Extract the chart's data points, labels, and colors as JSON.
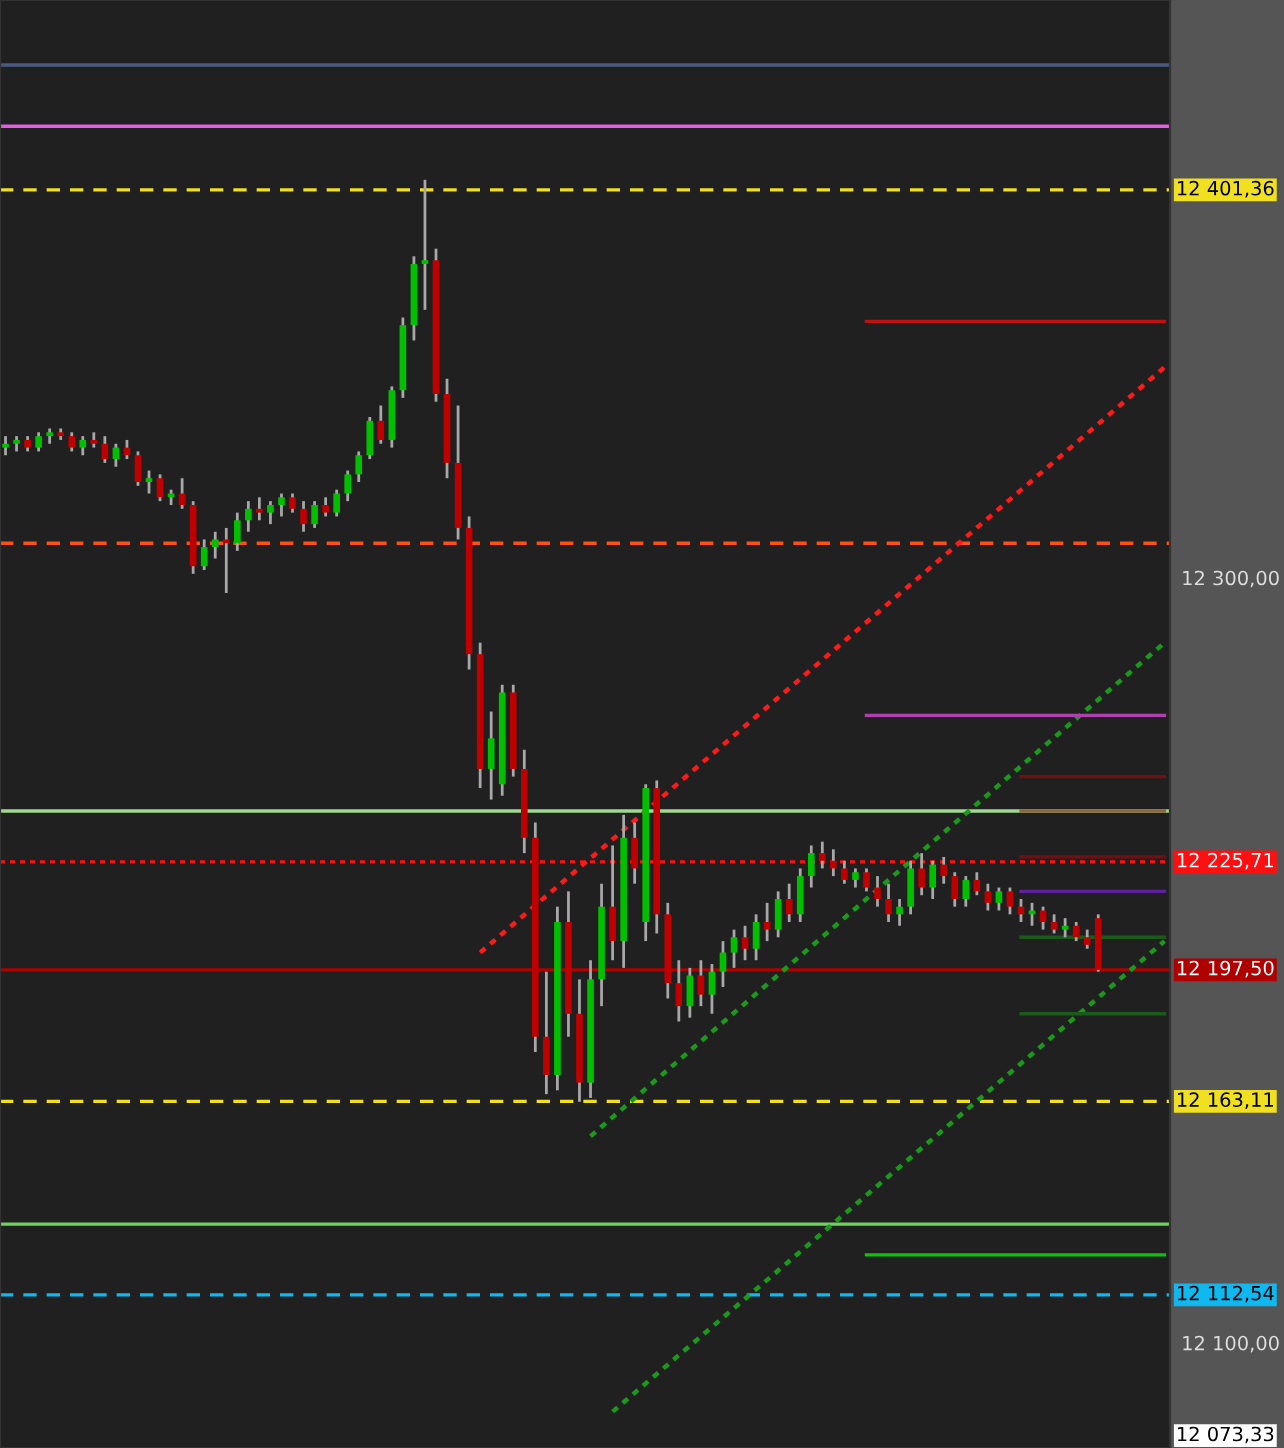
{
  "chart_data": {
    "type": "candlestick",
    "categories": [
      null,
      null,
      null,
      null,
      null,
      null,
      null,
      null,
      null,
      null,
      null,
      null,
      null,
      null,
      null,
      null,
      null,
      null,
      null,
      null,
      null,
      null,
      null,
      null,
      null,
      null,
      null,
      null,
      null,
      null,
      null,
      null,
      null,
      null,
      null,
      null,
      null,
      null,
      null,
      null,
      null,
      null,
      null,
      null,
      null,
      null,
      null,
      null,
      null,
      null,
      null,
      null,
      null,
      null,
      null,
      null,
      null,
      null,
      null,
      null,
      null,
      null,
      null,
      null,
      null,
      null,
      null,
      null,
      null,
      null,
      null,
      null,
      null,
      null,
      null,
      null,
      null,
      null,
      null,
      null,
      null,
      null,
      null,
      null,
      null,
      null,
      null,
      null,
      null,
      null,
      null,
      null,
      null,
      null,
      null,
      null,
      null,
      null,
      null,
      null,
      null,
      null,
      null,
      null,
      null,
      null
    ],
    "ohlc": [
      [
        12334,
        12337,
        12332,
        12335
      ],
      [
        12335,
        12337,
        12333,
        12336
      ],
      [
        12336,
        12337,
        12333,
        12334
      ],
      [
        12334,
        12338,
        12333,
        12337
      ],
      [
        12337,
        12339,
        12335,
        12338
      ],
      [
        12338,
        12339,
        12336,
        12337
      ],
      [
        12337,
        12338,
        12333,
        12334
      ],
      [
        12334,
        12337,
        12332,
        12336
      ],
      [
        12336,
        12338,
        12334,
        12335
      ],
      [
        12335,
        12337,
        12330,
        12331
      ],
      [
        12331,
        12335,
        12329,
        12334
      ],
      [
        12334,
        12336,
        12331,
        12332
      ],
      [
        12332,
        12333,
        12324,
        12325
      ],
      [
        12325,
        12328,
        12322,
        12326
      ],
      [
        12326,
        12327,
        12320,
        12321
      ],
      [
        12321,
        12323,
        12319,
        12322
      ],
      [
        12322,
        12326,
        12318,
        12319
      ],
      [
        12319,
        12320,
        12301,
        12303
      ],
      [
        12303,
        12310,
        12302,
        12308
      ],
      [
        12308,
        12312,
        12305,
        12310
      ],
      [
        12310,
        12313,
        12296,
        12309
      ],
      [
        12309,
        12317,
        12307,
        12315
      ],
      [
        12315,
        12320,
        12312,
        12318
      ],
      [
        12318,
        12321,
        12315,
        12317
      ],
      [
        12317,
        12320,
        12314,
        12319
      ],
      [
        12319,
        12322,
        12316,
        12321
      ],
      [
        12321,
        12322,
        12317,
        12318
      ],
      [
        12318,
        12320,
        12312,
        12314
      ],
      [
        12314,
        12320,
        12313,
        12319
      ],
      [
        12319,
        12321,
        12316,
        12317
      ],
      [
        12317,
        12323,
        12316,
        12322
      ],
      [
        12322,
        12328,
        12320,
        12327
      ],
      [
        12327,
        12333,
        12325,
        12332
      ],
      [
        12332,
        12342,
        12331,
        12341
      ],
      [
        12341,
        12345,
        12335,
        12336
      ],
      [
        12336,
        12350,
        12334,
        12349
      ],
      [
        12349,
        12368,
        12347,
        12366
      ],
      [
        12366,
        12384,
        12362,
        12382
      ],
      [
        12382,
        12404,
        12370,
        12383
      ],
      [
        12383,
        12386,
        12346,
        12348
      ],
      [
        12348,
        12352,
        12326,
        12330
      ],
      [
        12330,
        12345,
        12310,
        12313
      ],
      [
        12313,
        12316,
        12276,
        12280
      ],
      [
        12280,
        12283,
        12245,
        12250
      ],
      [
        12250,
        12265,
        12242,
        12258
      ],
      [
        12246,
        12272,
        12243,
        12270
      ],
      [
        12270,
        12272,
        12248,
        12250
      ],
      [
        12250,
        12255,
        12228,
        12232
      ],
      [
        12232,
        12236,
        12176,
        12180
      ],
      [
        12180,
        12197,
        12165,
        12170
      ],
      [
        12170,
        12214,
        12166,
        12210
      ],
      [
        12210,
        12218,
        12180,
        12186
      ],
      [
        12186,
        12195,
        12163,
        12168
      ],
      [
        12168,
        12200,
        12164,
        12195
      ],
      [
        12195,
        12220,
        12188,
        12214
      ],
      [
        12214,
        12230,
        12200,
        12205
      ],
      [
        12205,
        12238,
        12198,
        12232
      ],
      [
        12232,
        12236,
        12220,
        12224
      ],
      [
        12210,
        12246,
        12205,
        12245
      ],
      [
        12245,
        12247,
        12207,
        12212
      ],
      [
        12212,
        12215,
        12190,
        12194
      ],
      [
        12194,
        12200,
        12184,
        12188
      ],
      [
        12188,
        12198,
        12185,
        12196
      ],
      [
        12196,
        12200,
        12188,
        12191
      ],
      [
        12191,
        12199,
        12186,
        12197
      ],
      [
        12197,
        12205,
        12193,
        12202
      ],
      [
        12202,
        12208,
        12198,
        12206
      ],
      [
        12206,
        12209,
        12200,
        12203
      ],
      [
        12203,
        12212,
        12200,
        12210
      ],
      [
        12210,
        12215,
        12205,
        12208
      ],
      [
        12208,
        12218,
        12206,
        12216
      ],
      [
        12216,
        12220,
        12210,
        12212
      ],
      [
        12212,
        12224,
        12210,
        12222
      ],
      [
        12222,
        12230,
        12219,
        12228
      ],
      [
        12228,
        12231,
        12224,
        12226
      ],
      [
        12226,
        12229,
        12222,
        12224
      ],
      [
        12224,
        12226,
        12220,
        12221
      ],
      [
        12221,
        12224,
        12219,
        12223
      ],
      [
        12223,
        12224,
        12218,
        12219
      ],
      [
        12219,
        12222,
        12214,
        12216
      ],
      [
        12216,
        12220,
        12210,
        12212
      ],
      [
        12212,
        12216,
        12209,
        12214
      ],
      [
        12214,
        12226,
        12212,
        12224
      ],
      [
        12224,
        12228,
        12217,
        12219
      ],
      [
        12219,
        12226,
        12216,
        12225
      ],
      [
        12225,
        12227,
        12220,
        12222
      ],
      [
        12222,
        12223,
        12214,
        12216
      ],
      [
        12216,
        12222,
        12214,
        12221
      ],
      [
        12221,
        12223,
        12217,
        12218
      ],
      [
        12218,
        12220,
        12213,
        12215
      ],
      [
        12215,
        12219,
        12213,
        12218
      ],
      [
        12218,
        12219,
        12212,
        12214
      ],
      [
        12214,
        12216,
        12210,
        12212
      ],
      [
        12212,
        12215,
        12209,
        12213
      ],
      [
        12213,
        12214,
        12208,
        12210
      ],
      [
        12210,
        12212,
        12207,
        12208
      ],
      [
        12208,
        12211,
        12206,
        12209
      ],
      [
        12209,
        12210,
        12205,
        12206
      ],
      [
        12206,
        12208,
        12203,
        12204
      ],
      [
        12211,
        12212,
        12197,
        12197.5
      ],
      null,
      null,
      null,
      null,
      null,
      null
    ],
    "series": [
      {
        "type": "line",
        "color": "#ff1a1a",
        "line_style": "dotted",
        "values": [
          null,
          null,
          null,
          null,
          null,
          null,
          null,
          null,
          null,
          null,
          null,
          null,
          null,
          null,
          null,
          null,
          null,
          null,
          null,
          null,
          null,
          null,
          null,
          null,
          null,
          null,
          null,
          null,
          null,
          null,
          null,
          null,
          null,
          null,
          null,
          null,
          null,
          null,
          null,
          null,
          null,
          null,
          null,
          12202,
          null,
          null,
          null,
          null,
          null,
          null,
          null,
          null,
          null,
          null,
          null,
          null,
          null,
          null,
          null,
          null,
          null,
          null,
          null,
          null,
          null,
          null,
          null,
          null,
          null,
          null,
          null,
          null,
          null,
          null,
          null,
          null,
          null,
          null,
          null,
          null,
          null,
          null,
          null,
          null,
          null,
          null,
          null,
          null,
          null,
          null,
          null,
          null,
          null,
          null,
          null,
          null,
          null,
          null,
          null,
          null,
          null,
          null,
          null,
          null,
          null,
          12355
        ]
      },
      {
        "type": "line",
        "color": "#1a9a1a",
        "line_style": "dotted",
        "values": [
          null,
          null,
          null,
          null,
          null,
          null,
          null,
          null,
          null,
          null,
          null,
          null,
          null,
          null,
          null,
          null,
          null,
          null,
          null,
          null,
          null,
          null,
          null,
          null,
          null,
          null,
          null,
          null,
          null,
          null,
          null,
          null,
          null,
          null,
          null,
          null,
          null,
          null,
          null,
          null,
          null,
          null,
          null,
          null,
          null,
          null,
          null,
          null,
          null,
          null,
          null,
          null,
          null,
          12154,
          null,
          null,
          null,
          null,
          null,
          null,
          null,
          null,
          null,
          null,
          null,
          null,
          null,
          null,
          null,
          null,
          null,
          null,
          null,
          null,
          null,
          null,
          null,
          null,
          null,
          null,
          null,
          null,
          null,
          null,
          null,
          null,
          null,
          null,
          null,
          null,
          null,
          null,
          null,
          null,
          null,
          null,
          null,
          null,
          null,
          null,
          null,
          null,
          null,
          null,
          null,
          12283
        ]
      },
      {
        "type": "line",
        "color": "#1a9a1a",
        "line_style": "dotted",
        "values": [
          null,
          null,
          null,
          null,
          null,
          null,
          null,
          null,
          null,
          null,
          null,
          null,
          null,
          null,
          null,
          null,
          null,
          null,
          null,
          null,
          null,
          null,
          null,
          null,
          null,
          null,
          null,
          null,
          null,
          null,
          null,
          null,
          null,
          null,
          null,
          null,
          null,
          null,
          null,
          null,
          null,
          null,
          null,
          null,
          null,
          null,
          null,
          null,
          null,
          null,
          null,
          null,
          null,
          null,
          null,
          12082,
          null,
          null,
          null,
          null,
          null,
          null,
          null,
          null,
          null,
          null,
          null,
          null,
          null,
          null,
          null,
          null,
          null,
          null,
          null,
          null,
          null,
          null,
          null,
          null,
          null,
          null,
          null,
          null,
          null,
          null,
          null,
          null,
          null,
          null,
          null,
          null,
          null,
          null,
          null,
          null,
          null,
          null,
          null,
          null,
          null,
          null,
          null,
          null,
          null,
          12205
        ]
      },
      {
        "type": "line",
        "color": "#c01010",
        "line_style": "solid",
        "values": [
          null,
          null,
          null,
          null,
          null,
          null,
          null,
          null,
          null,
          null,
          null,
          null,
          null,
          null,
          null,
          null,
          null,
          null,
          null,
          null,
          null,
          null,
          null,
          null,
          null,
          null,
          null,
          null,
          null,
          null,
          null,
          null,
          null,
          null,
          null,
          null,
          null,
          null,
          null,
          null,
          null,
          null,
          null,
          null,
          null,
          null,
          null,
          null,
          null,
          null,
          null,
          null,
          null,
          null,
          null,
          null,
          null,
          null,
          null,
          null,
          null,
          null,
          null,
          null,
          null,
          null,
          null,
          null,
          null,
          null,
          null,
          null,
          null,
          null,
          null,
          null,
          null,
          null,
          12367,
          null,
          null,
          null,
          null,
          null,
          null,
          null,
          null,
          null,
          null,
          null,
          null,
          null,
          null,
          null,
          null,
          null,
          null,
          null,
          null,
          null,
          null,
          null,
          null,
          null,
          null,
          12367
        ]
      },
      {
        "type": "line",
        "color": "#b040b0",
        "line_style": "solid",
        "values": [
          null,
          null,
          null,
          null,
          null,
          null,
          null,
          null,
          null,
          null,
          null,
          null,
          null,
          null,
          null,
          null,
          null,
          null,
          null,
          null,
          null,
          null,
          null,
          null,
          null,
          null,
          null,
          null,
          null,
          null,
          null,
          null,
          null,
          null,
          null,
          null,
          null,
          null,
          null,
          null,
          null,
          null,
          null,
          null,
          null,
          null,
          null,
          null,
          null,
          null,
          null,
          null,
          null,
          null,
          null,
          null,
          null,
          null,
          null,
          null,
          null,
          null,
          null,
          null,
          null,
          null,
          null,
          null,
          null,
          null,
          null,
          null,
          null,
          null,
          null,
          null,
          null,
          null,
          12264,
          null,
          null,
          null,
          null,
          null,
          null,
          null,
          null,
          null,
          null,
          null,
          null,
          null,
          null,
          null,
          null,
          null,
          null,
          null,
          null,
          null,
          null,
          null,
          null,
          null,
          null,
          12264
        ]
      },
      {
        "type": "line",
        "color": "#10c010",
        "line_style": "solid",
        "values": [
          null,
          null,
          null,
          null,
          null,
          null,
          null,
          null,
          null,
          null,
          null,
          null,
          null,
          null,
          null,
          null,
          null,
          null,
          null,
          null,
          null,
          null,
          null,
          null,
          null,
          null,
          null,
          null,
          null,
          null,
          null,
          null,
          null,
          null,
          null,
          null,
          null,
          null,
          null,
          null,
          null,
          null,
          null,
          null,
          null,
          null,
          null,
          null,
          null,
          null,
          null,
          null,
          null,
          null,
          null,
          null,
          null,
          null,
          null,
          null,
          null,
          null,
          null,
          null,
          null,
          null,
          null,
          null,
          null,
          null,
          null,
          null,
          null,
          null,
          null,
          null,
          null,
          null,
          12123,
          null,
          null,
          null,
          null,
          null,
          null,
          null,
          null,
          null,
          null,
          null,
          null,
          null,
          null,
          null,
          null,
          null,
          null,
          null,
          null,
          null,
          null,
          null,
          null,
          null,
          null,
          12123
        ]
      },
      {
        "type": "line",
        "color": "#701010",
        "line_style": "solid",
        "values": [
          null,
          null,
          null,
          null,
          null,
          null,
          null,
          null,
          null,
          null,
          null,
          null,
          null,
          null,
          null,
          null,
          null,
          null,
          null,
          null,
          null,
          null,
          null,
          null,
          null,
          null,
          null,
          null,
          null,
          null,
          null,
          null,
          null,
          null,
          null,
          null,
          null,
          null,
          null,
          null,
          null,
          null,
          null,
          null,
          null,
          null,
          null,
          null,
          null,
          null,
          null,
          null,
          null,
          null,
          null,
          null,
          null,
          null,
          null,
          null,
          null,
          null,
          null,
          null,
          null,
          null,
          null,
          null,
          null,
          null,
          null,
          null,
          null,
          null,
          null,
          null,
          null,
          null,
          null,
          null,
          null,
          null,
          null,
          null,
          null,
          null,
          null,
          null,
          null,
          null,
          null,
          null,
          12248,
          null,
          null,
          null,
          null,
          null,
          null,
          null,
          null,
          null,
          null,
          null,
          null,
          12248
        ]
      },
      {
        "type": "line",
        "color": "#8a6a40",
        "line_style": "solid",
        "values": [
          null,
          null,
          null,
          null,
          null,
          null,
          null,
          null,
          null,
          null,
          null,
          null,
          null,
          null,
          null,
          null,
          null,
          null,
          null,
          null,
          null,
          null,
          null,
          null,
          null,
          null,
          null,
          null,
          null,
          null,
          null,
          null,
          null,
          null,
          null,
          null,
          null,
          null,
          null,
          null,
          null,
          null,
          null,
          null,
          null,
          null,
          null,
          null,
          null,
          null,
          null,
          null,
          null,
          null,
          null,
          null,
          null,
          null,
          null,
          null,
          null,
          null,
          null,
          null,
          null,
          null,
          null,
          null,
          null,
          null,
          null,
          null,
          null,
          null,
          null,
          null,
          null,
          null,
          null,
          null,
          null,
          null,
          null,
          null,
          null,
          null,
          null,
          null,
          null,
          null,
          null,
          null,
          12239,
          null,
          null,
          null,
          null,
          null,
          null,
          null,
          null,
          null,
          null,
          null,
          null,
          12239
        ]
      },
      {
        "type": "line",
        "color": "#701010",
        "line_style": "solid",
        "values": [
          null,
          null,
          null,
          null,
          null,
          null,
          null,
          null,
          null,
          null,
          null,
          null,
          null,
          null,
          null,
          null,
          null,
          null,
          null,
          null,
          null,
          null,
          null,
          null,
          null,
          null,
          null,
          null,
          null,
          null,
          null,
          null,
          null,
          null,
          null,
          null,
          null,
          null,
          null,
          null,
          null,
          null,
          null,
          null,
          null,
          null,
          null,
          null,
          null,
          null,
          null,
          null,
          null,
          null,
          null,
          null,
          null,
          null,
          null,
          null,
          null,
          null,
          null,
          null,
          null,
          null,
          null,
          null,
          null,
          null,
          null,
          null,
          null,
          null,
          null,
          null,
          null,
          null,
          null,
          null,
          null,
          null,
          null,
          null,
          null,
          null,
          null,
          null,
          null,
          null,
          null,
          null,
          12227,
          null,
          null,
          null,
          null,
          null,
          null,
          null,
          null,
          null,
          null,
          null,
          null,
          12227
        ]
      },
      {
        "type": "line",
        "color": "#6020a0",
        "line_style": "solid",
        "values": [
          null,
          null,
          null,
          null,
          null,
          null,
          null,
          null,
          null,
          null,
          null,
          null,
          null,
          null,
          null,
          null,
          null,
          null,
          null,
          null,
          null,
          null,
          null,
          null,
          null,
          null,
          null,
          null,
          null,
          null,
          null,
          null,
          null,
          null,
          null,
          null,
          null,
          null,
          null,
          null,
          null,
          null,
          null,
          null,
          null,
          null,
          null,
          null,
          null,
          null,
          null,
          null,
          null,
          null,
          null,
          null,
          null,
          null,
          null,
          null,
          null,
          null,
          null,
          null,
          null,
          null,
          null,
          null,
          null,
          null,
          null,
          null,
          null,
          null,
          null,
          null,
          null,
          null,
          null,
          null,
          null,
          null,
          null,
          null,
          null,
          null,
          null,
          null,
          null,
          null,
          null,
          null,
          12218,
          null,
          null,
          null,
          null,
          null,
          null,
          null,
          null,
          null,
          null,
          null,
          null,
          12218
        ]
      },
      {
        "type": "line",
        "color": "#1a5a1a",
        "line_style": "solid",
        "values": [
          null,
          null,
          null,
          null,
          null,
          null,
          null,
          null,
          null,
          null,
          null,
          null,
          null,
          null,
          null,
          null,
          null,
          null,
          null,
          null,
          null,
          null,
          null,
          null,
          null,
          null,
          null,
          null,
          null,
          null,
          null,
          null,
          null,
          null,
          null,
          null,
          null,
          null,
          null,
          null,
          null,
          null,
          null,
          null,
          null,
          null,
          null,
          null,
          null,
          null,
          null,
          null,
          null,
          null,
          null,
          null,
          null,
          null,
          null,
          null,
          null,
          null,
          null,
          null,
          null,
          null,
          null,
          null,
          null,
          null,
          null,
          null,
          null,
          null,
          null,
          null,
          null,
          null,
          null,
          null,
          null,
          null,
          null,
          null,
          null,
          null,
          null,
          null,
          null,
          null,
          null,
          null,
          12206,
          null,
          null,
          null,
          null,
          null,
          null,
          null,
          null,
          null,
          null,
          null,
          null,
          12206
        ]
      },
      {
        "type": "line",
        "color": "#1a5a1a",
        "line_style": "solid",
        "values": [
          null,
          null,
          null,
          null,
          null,
          null,
          null,
          null,
          null,
          null,
          null,
          null,
          null,
          null,
          null,
          null,
          null,
          null,
          null,
          null,
          null,
          null,
          null,
          null,
          null,
          null,
          null,
          null,
          null,
          null,
          null,
          null,
          null,
          null,
          null,
          null,
          null,
          null,
          null,
          null,
          null,
          null,
          null,
          null,
          null,
          null,
          null,
          null,
          null,
          null,
          null,
          null,
          null,
          null,
          null,
          null,
          null,
          null,
          null,
          null,
          null,
          null,
          null,
          null,
          null,
          null,
          null,
          null,
          null,
          null,
          null,
          null,
          null,
          null,
          null,
          null,
          null,
          null,
          null,
          null,
          null,
          null,
          null,
          null,
          null,
          null,
          null,
          null,
          null,
          null,
          null,
          null,
          12186,
          null,
          null,
          null,
          null,
          null,
          null,
          null,
          null,
          null,
          null,
          null,
          null,
          12186
        ]
      }
    ],
    "ref_lines": [
      {
        "axis": "y",
        "value": 12434,
        "color": "#4a5a80",
        "line_style": "solid"
      },
      {
        "axis": "y",
        "value": 12418,
        "color": "#e060e0",
        "line_style": "solid"
      },
      {
        "axis": "y",
        "value": 12401.36,
        "label": "12 401,36",
        "color": "#f0e020",
        "line_style": "dashed"
      },
      {
        "axis": "y",
        "value": 12309,
        "color": "#ff5010",
        "line_style": "dashed"
      },
      {
        "axis": "y",
        "value": 12239,
        "color": "#a0d890",
        "line_style": "solid"
      },
      {
        "axis": "y",
        "value": 12225.71,
        "label": "12 225,71",
        "color": "#ff1010",
        "line_style": "dotted"
      },
      {
        "axis": "y",
        "value": 12197.5,
        "label": "12 197,50",
        "color": "#b00000",
        "line_style": "solid"
      },
      {
        "axis": "y",
        "value": 12163.11,
        "label": "12 163,11",
        "color": "#f0e020",
        "line_style": "dashed"
      },
      {
        "axis": "y",
        "value": 12131,
        "color": "#70d060",
        "line_style": "solid"
      },
      {
        "axis": "y",
        "value": 12112.54,
        "label": "12 112,54",
        "color": "#10b8f0",
        "line_style": "dashed"
      }
    ],
    "annotations": [
      "12 073,33"
    ],
    "ylim": [
      12072.5,
      12451
    ],
    "yticks": [
      {
        "value": 12300,
        "label": "12 300,00"
      },
      {
        "value": 12100,
        "label": "12 100,00"
      }
    ],
    "tick_labels": "y",
    "grid": false,
    "legend": false
  }
}
